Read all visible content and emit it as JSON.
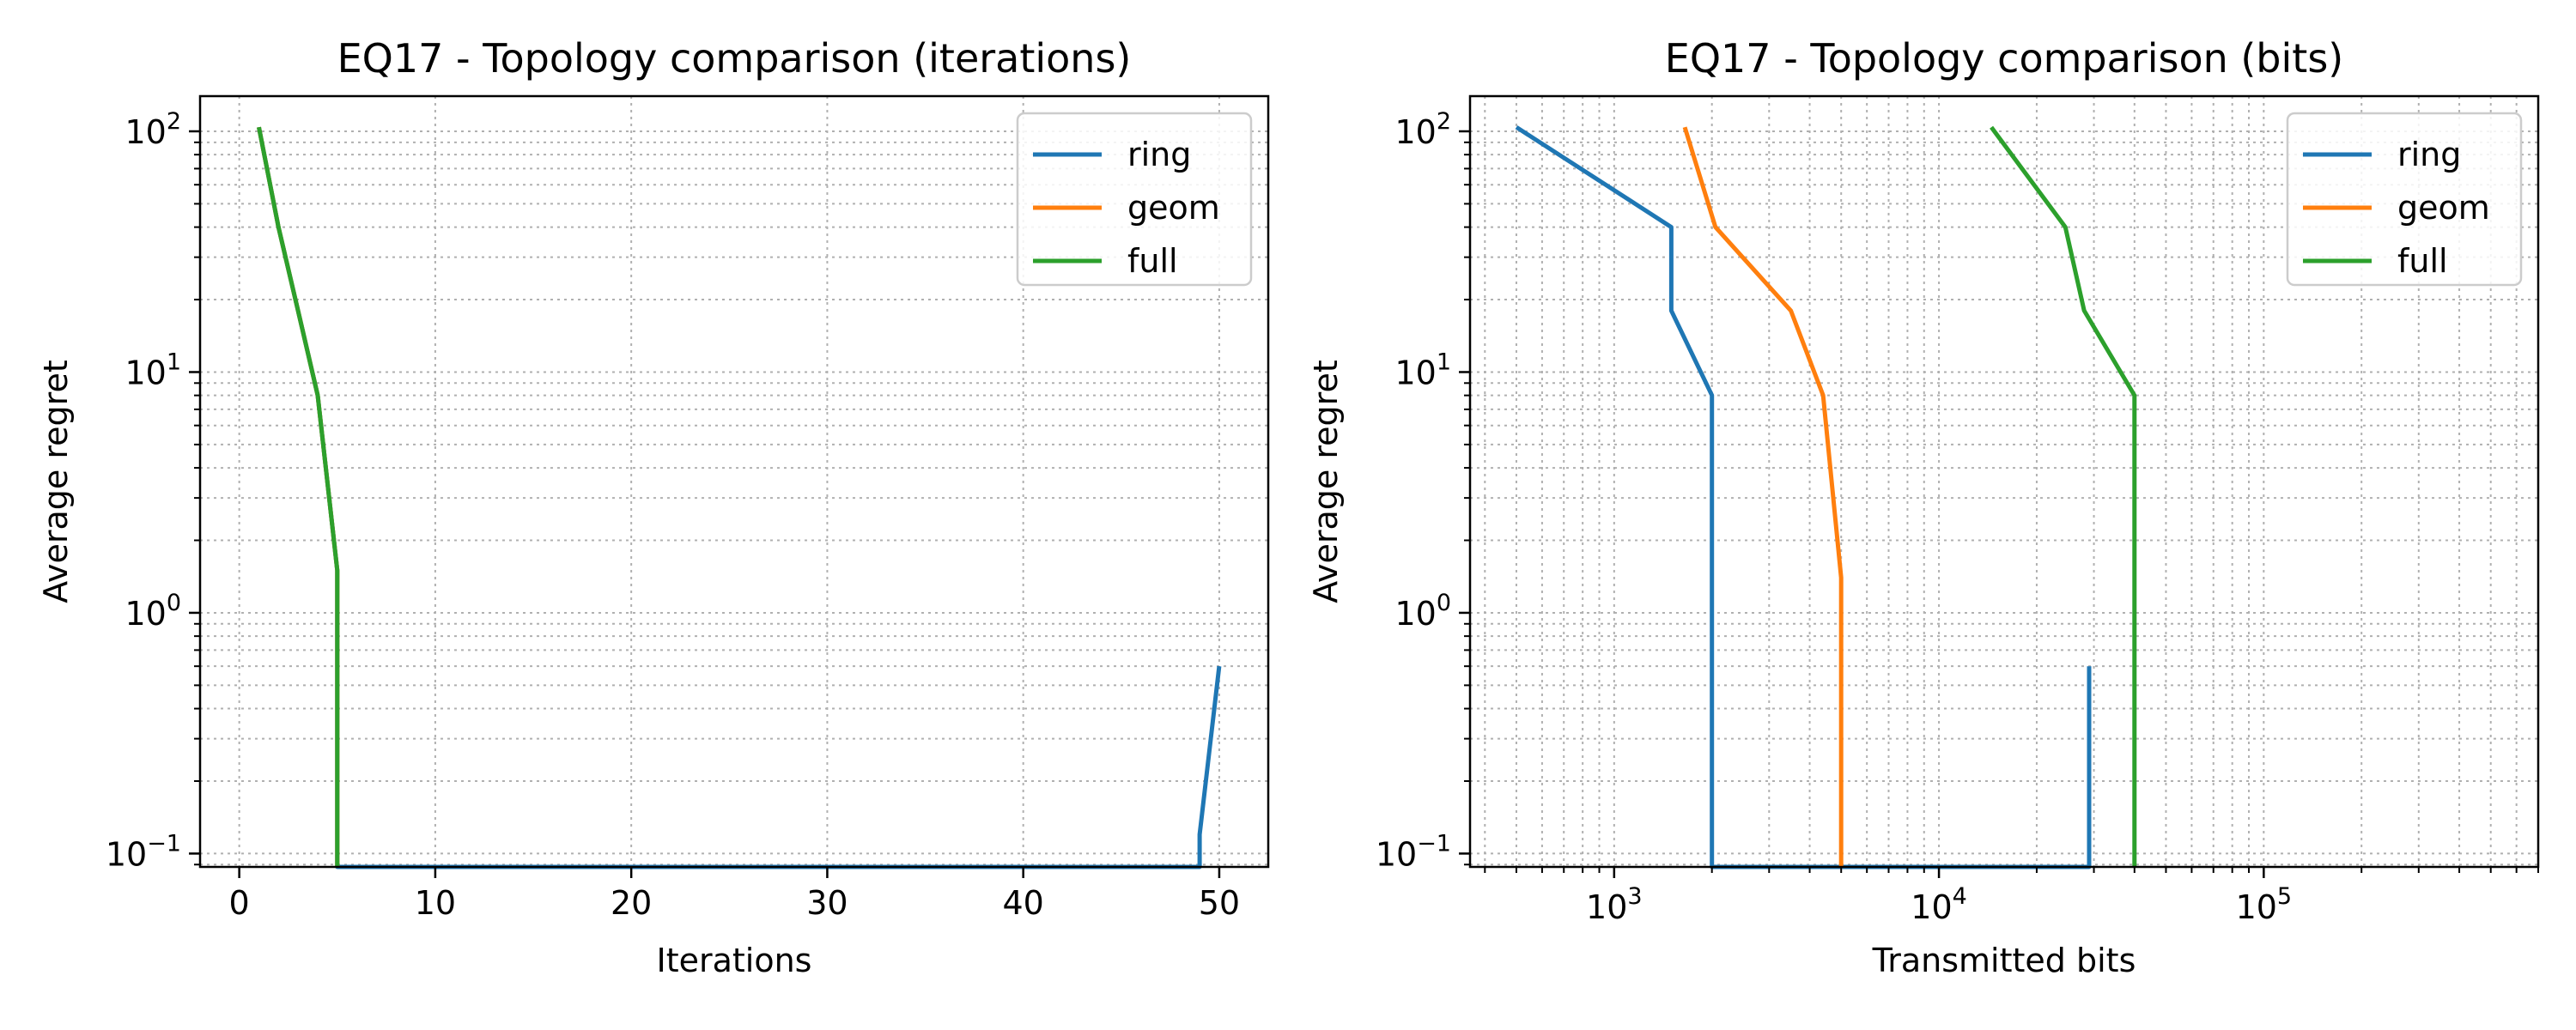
{
  "colors": {
    "ring": "#1f77b4",
    "geom": "#ff7f0e",
    "full": "#2ca02c",
    "grid": "#b0b0b0"
  },
  "chart_data": [
    {
      "type": "line",
      "title": "EQ17 - Topology comparison (iterations)",
      "xlabel": "Iterations",
      "ylabel": "Average regret",
      "xscale": "linear",
      "yscale": "log",
      "xlim": [
        -2,
        52.5
      ],
      "ylim": [
        0.088,
        140
      ],
      "xticks": [
        {
          "value": 0,
          "label": "0"
        },
        {
          "value": 10,
          "label": "10"
        },
        {
          "value": 20,
          "label": "20"
        },
        {
          "value": 30,
          "label": "30"
        },
        {
          "value": 40,
          "label": "40"
        },
        {
          "value": 50,
          "label": "50"
        }
      ],
      "yticks": [
        {
          "value": 0.1,
          "base": "10",
          "exp": "−1"
        },
        {
          "value": 1,
          "base": "10",
          "exp": "0"
        },
        {
          "value": 10,
          "base": "10",
          "exp": "1"
        },
        {
          "value": 100,
          "base": "10",
          "exp": "2"
        }
      ],
      "grid": true,
      "legend_position": "top-right",
      "series": [
        {
          "name": "ring",
          "color": "#1f77b4",
          "x": [
            1,
            2,
            3,
            4,
            5,
            5,
            49,
            49,
            50
          ],
          "y": [
            104,
            40,
            18,
            8,
            1.5,
            0.08,
            0.08,
            0.12,
            0.6
          ]
        },
        {
          "name": "geom",
          "color": "#ff7f0e",
          "x": [
            1,
            2,
            3,
            4,
            5,
            5
          ],
          "y": [
            104,
            40,
            18,
            8,
            1.5,
            0.08
          ]
        },
        {
          "name": "full",
          "color": "#2ca02c",
          "x": [
            1,
            2,
            3,
            4,
            5,
            5
          ],
          "y": [
            104,
            40,
            18,
            8,
            1.5,
            0.08
          ]
        }
      ]
    },
    {
      "type": "line",
      "title": "EQ17 - Topology comparison (bits)",
      "xlabel": "Transmitted bits",
      "ylabel": "Average regret",
      "xscale": "log",
      "yscale": "log",
      "xlim": [
        360,
        700000
      ],
      "ylim": [
        0.088,
        140
      ],
      "xticks": [
        {
          "value": 1000,
          "base": "10",
          "exp": "3"
        },
        {
          "value": 10000,
          "base": "10",
          "exp": "4"
        },
        {
          "value": 100000,
          "base": "10",
          "exp": "5"
        }
      ],
      "yticks": [
        {
          "value": 0.1,
          "base": "10",
          "exp": "−1"
        },
        {
          "value": 1,
          "base": "10",
          "exp": "0"
        },
        {
          "value": 10,
          "base": "10",
          "exp": "1"
        },
        {
          "value": 100,
          "base": "10",
          "exp": "2"
        }
      ],
      "grid": true,
      "legend_position": "top-right",
      "series": [
        {
          "name": "ring",
          "color": "#1f77b4",
          "x": [
            500,
            1500,
            1500,
            2000,
            2000,
            29000,
            29000
          ],
          "y": [
            104,
            40,
            18,
            8,
            0.08,
            0.08,
            0.6
          ]
        },
        {
          "name": "geom",
          "color": "#ff7f0e",
          "x": [
            1650,
            2050,
            3500,
            4400,
            5000,
            5000
          ],
          "y": [
            104,
            40,
            18,
            8,
            1.4,
            0.08
          ]
        },
        {
          "name": "full",
          "color": "#2ca02c",
          "x": [
            14500,
            24500,
            28000,
            40000,
            40000
          ],
          "y": [
            104,
            40,
            18,
            8,
            0.08
          ]
        }
      ]
    }
  ]
}
